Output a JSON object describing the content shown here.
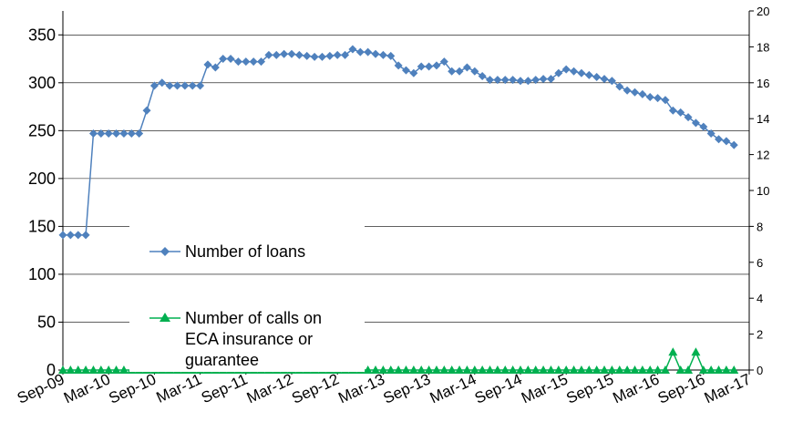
{
  "chart_data": {
    "type": "line",
    "title": "",
    "xlabel": "",
    "ylabel": "",
    "x_tick_labels": [
      "Sep-09",
      "Mar-10",
      "Sep-10",
      "Mar-11",
      "Sep-11",
      "Mar-12",
      "Sep-12",
      "Mar-13",
      "Sep-13",
      "Mar-14",
      "Sep-14",
      "Mar-15",
      "Sep-15",
      "Mar-16",
      "Sep-16",
      "Mar-17"
    ],
    "x_range_months": [
      0,
      90
    ],
    "y_left": {
      "range": [
        0,
        375
      ],
      "ticks": [
        0,
        50,
        100,
        150,
        200,
        250,
        300,
        350
      ]
    },
    "y_right": {
      "range": [
        0,
        20
      ],
      "ticks": [
        0,
        2,
        4,
        6,
        8,
        10,
        12,
        14,
        16,
        18,
        20
      ]
    },
    "grid": "horizontal",
    "legend_position": "center-left",
    "series": [
      {
        "name": "Number of loans",
        "axis": "left",
        "color": "#4f81bd",
        "marker": "diamond",
        "start_month": 0,
        "values": [
          141,
          141,
          141,
          141,
          247,
          247,
          247,
          247,
          247,
          247,
          247,
          271,
          297,
          300,
          297,
          297,
          297,
          297,
          297,
          319,
          316,
          325,
          325,
          322,
          322,
          322,
          322,
          329,
          329,
          330,
          330,
          329,
          328,
          327,
          327,
          328,
          329,
          329,
          335,
          332,
          332,
          330,
          329,
          328,
          318,
          313,
          310,
          317,
          317,
          318,
          322,
          312,
          312,
          316,
          312,
          307,
          303,
          303,
          303,
          303,
          302,
          302,
          303,
          304,
          304,
          310,
          314,
          312,
          310,
          308,
          306,
          304,
          302,
          296,
          292,
          290,
          288,
          285,
          284,
          282,
          271,
          269,
          264,
          258,
          254,
          247,
          241,
          239,
          235
        ]
      },
      {
        "name": "Number of calls on ECA insurance or guarantee",
        "axis": "right",
        "color": "#00b050",
        "marker": "triangle",
        "start_month": 0,
        "values": [
          0,
          0,
          0,
          0,
          0,
          0,
          0,
          0,
          0,
          0,
          0,
          0,
          0,
          0,
          0,
          0,
          0,
          0,
          0,
          0,
          0,
          0,
          0,
          0,
          0,
          0,
          0,
          0,
          0,
          0,
          0,
          0,
          0,
          0,
          0,
          0,
          0,
          0,
          0,
          0,
          0,
          0,
          0,
          0,
          0,
          0,
          0,
          0,
          0,
          0,
          0,
          0,
          0,
          0,
          0,
          0,
          0,
          0,
          0,
          0,
          0,
          0,
          0,
          0,
          0,
          0,
          0,
          0,
          0,
          0,
          0,
          0,
          0,
          0,
          0,
          0,
          0,
          0,
          0,
          0,
          1,
          0,
          0,
          1,
          0,
          0,
          0,
          0,
          0
        ]
      }
    ]
  }
}
